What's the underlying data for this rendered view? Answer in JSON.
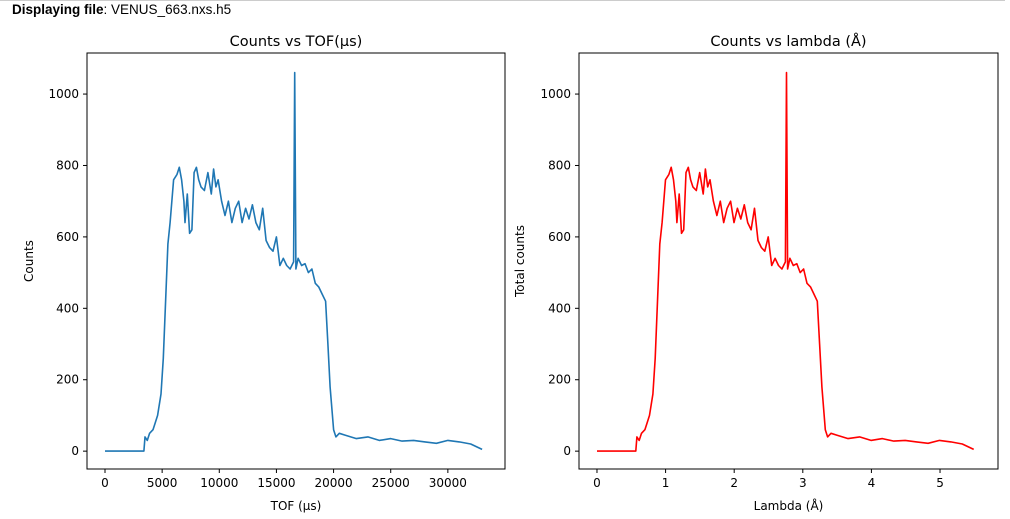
{
  "header": {
    "label": "Displaying file",
    "separator": ": ",
    "filename": "VENUS_663.nxs.h5"
  },
  "chart_data": [
    {
      "type": "line",
      "title": "Counts vs TOF(µs)",
      "xlabel": "TOF (µs)",
      "ylabel": "Counts",
      "xlim": [
        -1575,
        35000
      ],
      "ylim": [
        -50,
        1115
      ],
      "xticks": [
        0,
        5000,
        10000,
        15000,
        20000,
        25000,
        30000
      ],
      "yticks": [
        0,
        200,
        400,
        600,
        800,
        1000
      ],
      "color": "#1f77b4",
      "grid": false,
      "x": [
        0,
        3400,
        3500,
        3700,
        3900,
        4200,
        4400,
        4600,
        4900,
        5100,
        5300,
        5500,
        5700,
        6000,
        6300,
        6500,
        6700,
        6900,
        7000,
        7200,
        7400,
        7600,
        7800,
        8000,
        8200,
        8400,
        8700,
        9000,
        9300,
        9500,
        9700,
        9900,
        10200,
        10500,
        10800,
        11100,
        11400,
        11700,
        12000,
        12300,
        12600,
        12900,
        13200,
        13500,
        13800,
        14100,
        14400,
        14700,
        15000,
        15300,
        15600,
        15900,
        16200,
        16500,
        16600,
        16700,
        16900,
        17200,
        17500,
        17800,
        18100,
        18400,
        18700,
        19000,
        19300,
        19500,
        19700,
        20000,
        20200,
        20500,
        21000,
        22000,
        23000,
        24000,
        25000,
        26000,
        27000,
        28000,
        29000,
        30000,
        31000,
        32000,
        33000
      ],
      "y": [
        0,
        0,
        40,
        30,
        50,
        60,
        80,
        100,
        160,
        260,
        420,
        580,
        640,
        760,
        775,
        795,
        760,
        700,
        640,
        720,
        610,
        620,
        780,
        795,
        760,
        740,
        730,
        780,
        720,
        790,
        740,
        760,
        700,
        660,
        700,
        640,
        680,
        700,
        640,
        680,
        650,
        690,
        640,
        620,
        680,
        590,
        570,
        560,
        600,
        520,
        540,
        520,
        510,
        530,
        1060,
        510,
        540,
        520,
        525,
        500,
        510,
        470,
        460,
        440,
        420,
        300,
        180,
        60,
        40,
        50,
        45,
        35,
        40,
        30,
        35,
        28,
        30,
        26,
        22,
        30,
        26,
        20,
        5
      ]
    },
    {
      "type": "line",
      "title": "Counts vs lambda (Å)",
      "xlabel": "Lambda (Å)",
      "ylabel": "Total counts",
      "xlim": [
        -0.262,
        5.845
      ],
      "ylim": [
        -50,
        1115
      ],
      "xticks": [
        0,
        1,
        2,
        3,
        4,
        5
      ],
      "yticks": [
        0,
        200,
        400,
        600,
        800,
        1000
      ],
      "color": "#ff0000",
      "grid": false,
      "tof_to_lambda_factor": 0.0001664
    }
  ]
}
